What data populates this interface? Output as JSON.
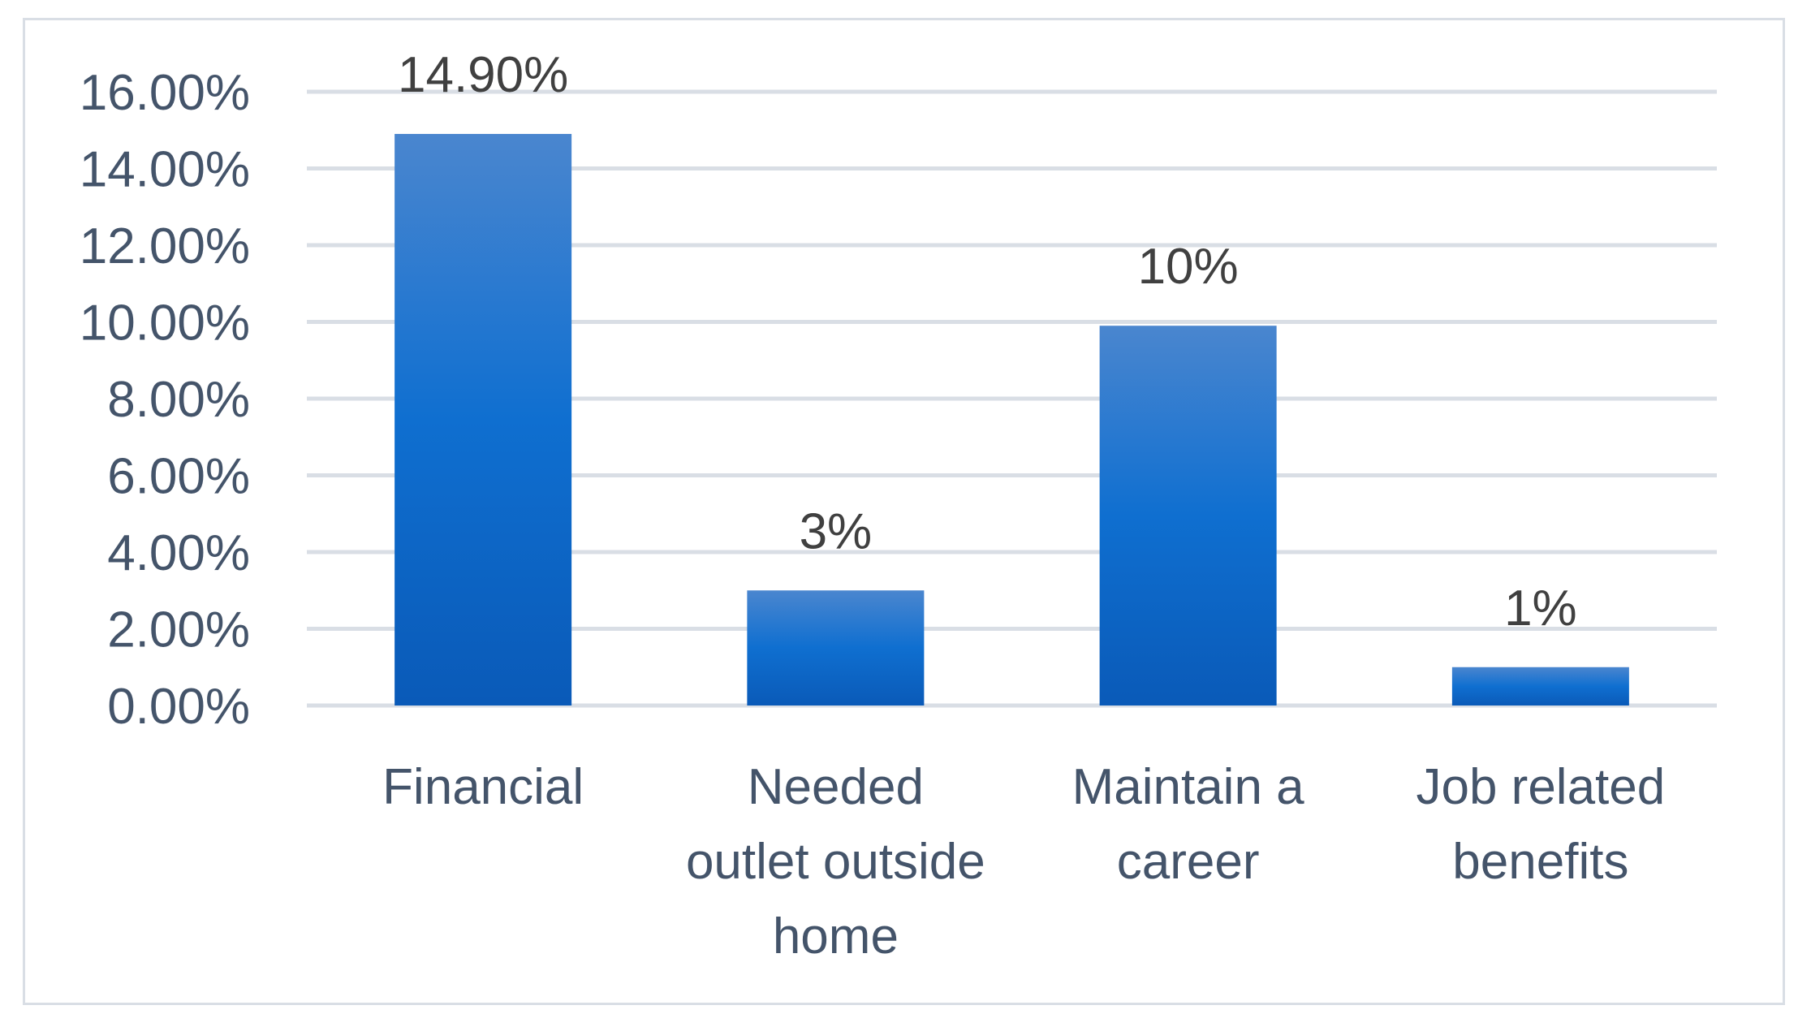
{
  "chart_data": {
    "type": "bar",
    "categories": [
      "Financial",
      "Needed outlet outside home",
      "Maintain a career",
      "Job related benefits"
    ],
    "category_label_lines": [
      [
        "Financial"
      ],
      [
        "Needed",
        "outlet outside",
        "home"
      ],
      [
        "Maintain a",
        "career"
      ],
      [
        "Job related",
        "benefits"
      ]
    ],
    "values": [
      14.9,
      3,
      9.9,
      1
    ],
    "data_labels": [
      "14.90%",
      "3%",
      "10%",
      "1%"
    ],
    "yticks": [
      "0.00%",
      "2.00%",
      "4.00%",
      "6.00%",
      "8.00%",
      "10.00%",
      "12.00%",
      "14.00%",
      "16.00%"
    ],
    "ylim": [
      0,
      16
    ],
    "grid": true,
    "legend": "none",
    "title": "",
    "xlabel": "",
    "ylabel": "",
    "colors": {
      "bar_top": "#4a86cf",
      "bar_mid": "#0f6fd0",
      "bar_bottom": "#0a5ab8",
      "grid": "#d9dee5",
      "text": "#44546a"
    }
  }
}
